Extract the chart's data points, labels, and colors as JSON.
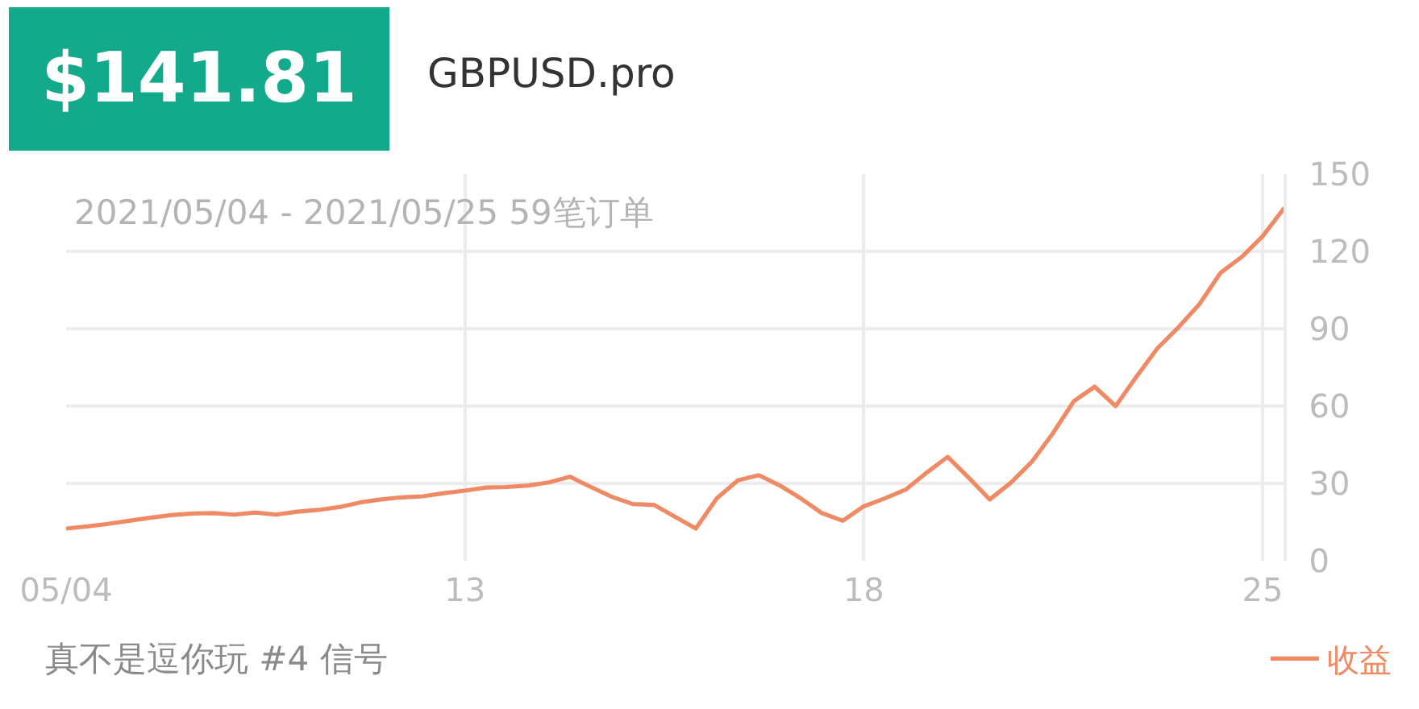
{
  "chart_data": {
    "type": "line",
    "title": "GBPUSD.pro",
    "subtitle": "2021/05/04 - 2021/05/25 59笔订单",
    "annotations": [
      "$141.81",
      "真不是逗你玩 #4 信号"
    ],
    "categories": [
      "05/04",
      null,
      null,
      null,
      null,
      null,
      null,
      null,
      null,
      null,
      null,
      null,
      null,
      null,
      null,
      null,
      null,
      null,
      null,
      "13",
      null,
      null,
      null,
      null,
      null,
      null,
      null,
      null,
      null,
      null,
      null,
      null,
      null,
      null,
      null,
      null,
      null,
      null,
      "18",
      null,
      null,
      null,
      null,
      null,
      null,
      null,
      null,
      null,
      null,
      null,
      null,
      null,
      null,
      null,
      null,
      null,
      null,
      "25",
      null
    ],
    "ylim": [
      0,
      150
    ],
    "yticks": [
      0,
      30,
      60,
      90,
      120,
      150
    ],
    "series": [
      {
        "name": "收益",
        "color": "#ef8a65",
        "values": [
          12.5,
          13.3,
          14.3,
          15.5,
          16.7,
          17.7,
          18.3,
          18.5,
          17.9,
          18.7,
          17.9,
          19.0,
          19.7,
          20.8,
          22.6,
          23.8,
          24.6,
          25.0,
          26.2,
          27.2,
          28.4,
          28.6,
          29.2,
          30.4,
          32.6,
          28.6,
          24.8,
          22.0,
          21.7,
          17.1,
          12.5,
          24.2,
          31.2,
          33.2,
          29.2,
          24.2,
          18.5,
          15.5,
          21.1,
          24.2,
          27.6,
          34.2,
          40.3,
          32.2,
          23.8,
          30.2,
          38.3,
          49.3,
          61.8,
          67.5,
          60.0,
          71.5,
          82.5,
          90.6,
          99.6,
          111.7,
          117.8,
          125.8,
          136.5
        ]
      }
    ],
    "grid": true,
    "legend": "bottom right",
    "marker": "none",
    "line_style": "solid"
  }
}
